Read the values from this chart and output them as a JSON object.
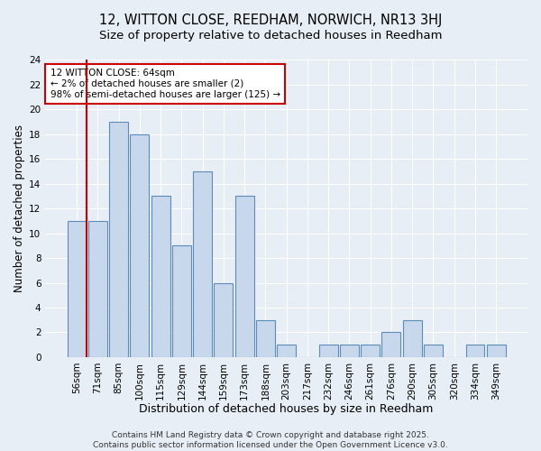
{
  "title1": "12, WITTON CLOSE, REEDHAM, NORWICH, NR13 3HJ",
  "title2": "Size of property relative to detached houses in Reedham",
  "xlabel": "Distribution of detached houses by size in Reedham",
  "ylabel": "Number of detached properties",
  "categories": [
    "56sqm",
    "71sqm",
    "85sqm",
    "100sqm",
    "115sqm",
    "129sqm",
    "144sqm",
    "159sqm",
    "173sqm",
    "188sqm",
    "203sqm",
    "217sqm",
    "232sqm",
    "246sqm",
    "261sqm",
    "276sqm",
    "290sqm",
    "305sqm",
    "320sqm",
    "334sqm",
    "349sqm"
  ],
  "values": [
    11,
    11,
    19,
    18,
    13,
    9,
    15,
    6,
    13,
    3,
    1,
    0,
    1,
    1,
    1,
    2,
    3,
    1,
    0,
    1,
    1
  ],
  "bar_color": "#c8d8ec",
  "bar_edge_color": "#5b8db8",
  "annotation_text": "12 WITTON CLOSE: 64sqm\n← 2% of detached houses are smaller (2)\n98% of semi-detached houses are larger (125) →",
  "annotation_box_color": "white",
  "annotation_box_edge_color": "#cc0000",
  "property_line_color": "#cc0000",
  "property_line_x": 0,
  "ylim": [
    0,
    24
  ],
  "yticks": [
    0,
    2,
    4,
    6,
    8,
    10,
    12,
    14,
    16,
    18,
    20,
    22,
    24
  ],
  "bg_color": "#e8eef5",
  "plot_bg_color": "#e8eef5",
  "grid_color": "white",
  "footer": "Contains HM Land Registry data © Crown copyright and database right 2025.\nContains public sector information licensed under the Open Government Licence v3.0.",
  "title1_fontsize": 10.5,
  "title2_fontsize": 9.5,
  "xlabel_fontsize": 9,
  "ylabel_fontsize": 8.5,
  "tick_fontsize": 7.5,
  "annot_fontsize": 7.5,
  "footer_fontsize": 6.5
}
